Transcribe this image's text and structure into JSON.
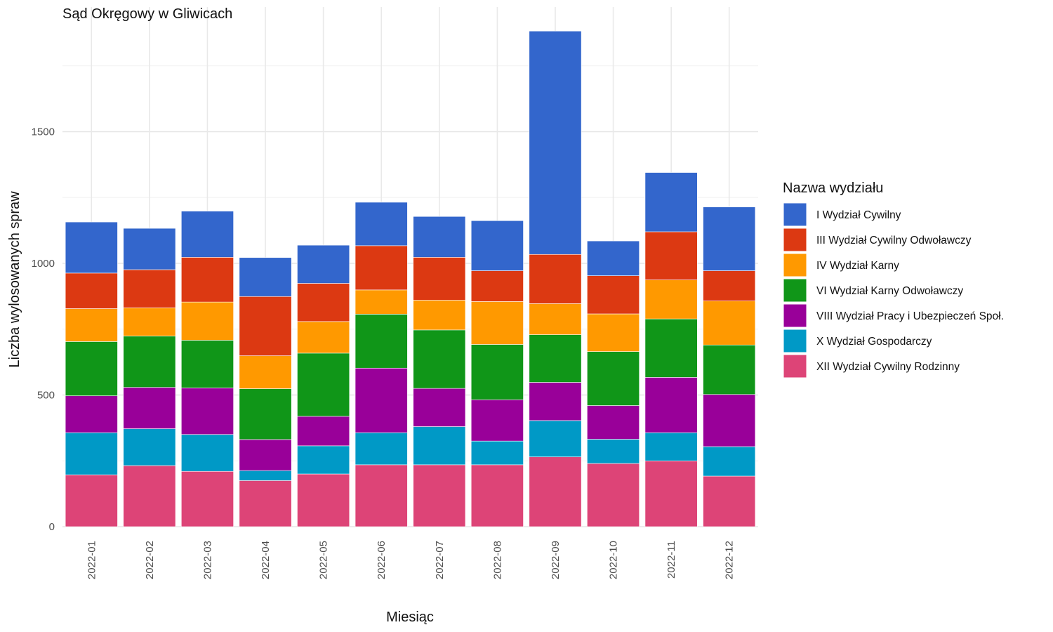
{
  "chart_data": {
    "type": "bar",
    "stacked": true,
    "title": "Sąd Okręgowy w Gliwicach",
    "xlabel": "Miesiąc",
    "ylabel": "Liczba wylosowanych spraw",
    "ylim": [
      0,
      1900
    ],
    "yticks": [
      0,
      500,
      1000,
      1500
    ],
    "grid": true,
    "legend_title": "Nazwa wydziału",
    "legend_position": "right",
    "categories": [
      "2022-01",
      "2022-02",
      "2022-03",
      "2022-04",
      "2022-05",
      "2022-06",
      "2022-07",
      "2022-08",
      "2022-09",
      "2022-10",
      "2022-11",
      "2022-12"
    ],
    "series": [
      {
        "name": "XII Wydział Cywilny Rodzinny",
        "color": "#DD4477",
        "values": [
          197,
          232,
          210,
          175,
          200,
          235,
          235,
          235,
          265,
          240,
          250,
          192
        ]
      },
      {
        "name": "X Wydział Gospodarczy",
        "color": "#0099C6",
        "values": [
          160,
          140,
          140,
          38,
          107,
          122,
          145,
          90,
          138,
          92,
          107,
          112
        ]
      },
      {
        "name": "VIII Wydział Pracy i Ubezpieczeń Społ.",
        "color": "#990099",
        "values": [
          140,
          157,
          177,
          118,
          112,
          245,
          145,
          157,
          145,
          128,
          210,
          198
        ]
      },
      {
        "name": "VI Wydział Karny Odwoławczy",
        "color": "#109618",
        "values": [
          206,
          195,
          181,
          193,
          240,
          205,
          222,
          210,
          181,
          205,
          222,
          188
        ]
      },
      {
        "name": "IV Wydział Karny",
        "color": "#FF9900",
        "values": [
          125,
          107,
          145,
          125,
          120,
          92,
          113,
          163,
          118,
          143,
          148,
          167
        ]
      },
      {
        "name": "III Wydział Cywilny Odwoławczy",
        "color": "#DC3912",
        "values": [
          135,
          145,
          170,
          225,
          145,
          168,
          163,
          117,
          187,
          145,
          183,
          115
        ]
      },
      {
        "name": "I Wydział Cywilny",
        "color": "#3366CC",
        "values": [
          194,
          157,
          175,
          148,
          145,
          165,
          155,
          190,
          848,
          132,
          225,
          242
        ]
      }
    ]
  }
}
